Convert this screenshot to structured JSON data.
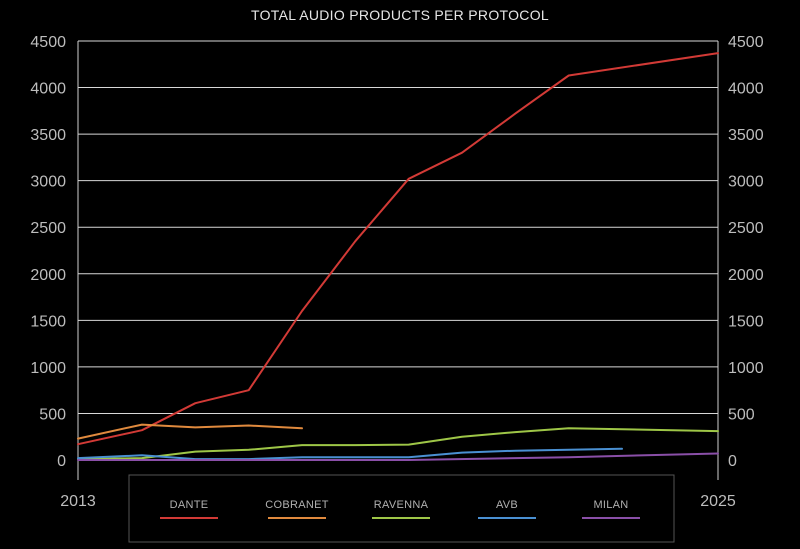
{
  "chart_data": {
    "type": "line",
    "title": "TOTAL AUDIO PRODUCTS PER PROTOCOL",
    "xlabel": "",
    "ylabel": "",
    "x_range": [
      2013,
      2025
    ],
    "x_tick_labels": [
      "2013",
      "2025"
    ],
    "ylim": [
      0,
      4500
    ],
    "y_ticks": [
      0,
      500,
      1000,
      1500,
      2000,
      2500,
      3000,
      3500,
      4000,
      4500
    ],
    "secondary_y_axis": true,
    "grid": true,
    "legend": "bottom",
    "series": [
      {
        "name": "DANTE",
        "color": "#d23a36",
        "points": [
          [
            2013,
            170
          ],
          [
            2014.2,
            320
          ],
          [
            2015.2,
            610
          ],
          [
            2016.2,
            750
          ],
          [
            2017.2,
            1600
          ],
          [
            2018.2,
            2350
          ],
          [
            2019.2,
            3020
          ],
          [
            2020.2,
            3300
          ],
          [
            2021.2,
            3720
          ],
          [
            2022.2,
            4130
          ],
          [
            2025,
            4370
          ]
        ]
      },
      {
        "name": "COBRANET",
        "color": "#e08a3e",
        "points": [
          [
            2013,
            230
          ],
          [
            2014.2,
            380
          ],
          [
            2015.2,
            350
          ],
          [
            2016.2,
            370
          ],
          [
            2017.2,
            340
          ]
        ]
      },
      {
        "name": "RAVENNA",
        "color": "#9ec647",
        "points": [
          [
            2013,
            10
          ],
          [
            2014.2,
            20
          ],
          [
            2015.2,
            90
          ],
          [
            2016.2,
            110
          ],
          [
            2017.2,
            160
          ],
          [
            2018.2,
            160
          ],
          [
            2019.2,
            165
          ],
          [
            2020.2,
            250
          ],
          [
            2021.2,
            300
          ],
          [
            2022.2,
            340
          ],
          [
            2025,
            310
          ]
        ]
      },
      {
        "name": "AVB",
        "color": "#4a90d2",
        "points": [
          [
            2013,
            20
          ],
          [
            2014.2,
            50
          ],
          [
            2015.2,
            10
          ],
          [
            2016.2,
            10
          ],
          [
            2017.2,
            30
          ],
          [
            2018.2,
            30
          ],
          [
            2019.2,
            30
          ],
          [
            2020.2,
            80
          ],
          [
            2021.2,
            100
          ],
          [
            2022.2,
            110
          ],
          [
            2023.2,
            120
          ]
        ]
      },
      {
        "name": "MILAN",
        "color": "#8a4fa8",
        "points": [
          [
            2013,
            0
          ],
          [
            2019.2,
            0
          ],
          [
            2022.2,
            30
          ],
          [
            2025,
            70
          ]
        ]
      }
    ]
  }
}
